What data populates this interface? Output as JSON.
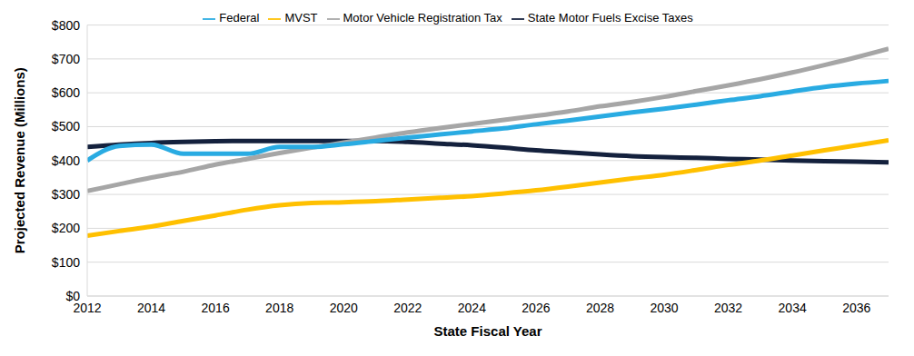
{
  "chart_data": {
    "type": "line",
    "x_label": "State Fiscal Year",
    "y_label": "Projected Revenue (Millions)",
    "x": [
      2012,
      2013,
      2014,
      2015,
      2016,
      2017,
      2018,
      2019,
      2020,
      2021,
      2022,
      2023,
      2024,
      2025,
      2026,
      2027,
      2028,
      2029,
      2030,
      2031,
      2032,
      2033,
      2034,
      2035,
      2036,
      2037
    ],
    "series": [
      {
        "name": "State Motor Fuels Excise Taxes",
        "color": "#14213d",
        "values": [
          440,
          447,
          452,
          455,
          457,
          458,
          458,
          458,
          458,
          458,
          455,
          450,
          445,
          438,
          430,
          424,
          418,
          413,
          410,
          408,
          405,
          403,
          400,
          398,
          397,
          395
        ]
      },
      {
        "name": "Motor Vehicle Registration Tax",
        "color": "#a6a6a6",
        "values": [
          310,
          330,
          350,
          367,
          388,
          405,
          422,
          438,
          453,
          468,
          483,
          496,
          508,
          520,
          532,
          545,
          560,
          573,
          588,
          605,
          622,
          640,
          660,
          682,
          705,
          730
        ]
      },
      {
        "name": "Federal",
        "color": "#29abe2",
        "values": [
          400,
          443,
          447,
          420,
          420,
          420,
          440,
          440,
          448,
          458,
          468,
          477,
          486,
          495,
          507,
          518,
          530,
          542,
          553,
          565,
          578,
          590,
          604,
          617,
          627,
          635
        ]
      },
      {
        "name": "MVST",
        "color": "#ffc000",
        "values": [
          178,
          192,
          205,
          222,
          238,
          255,
          268,
          275,
          277,
          280,
          285,
          290,
          295,
          303,
          312,
          323,
          335,
          347,
          358,
          372,
          387,
          400,
          415,
          430,
          445,
          460
        ]
      }
    ],
    "xlim": [
      2012,
      2037
    ],
    "xticks": [
      2012,
      2014,
      2016,
      2018,
      2020,
      2022,
      2024,
      2026,
      2028,
      2030,
      2032,
      2034,
      2036
    ],
    "ylim": [
      0,
      800
    ],
    "yticks": [
      {
        "value": 0,
        "label": "$0"
      },
      {
        "value": 100,
        "label": "$100"
      },
      {
        "value": 200,
        "label": "$200"
      },
      {
        "value": 300,
        "label": "$300"
      },
      {
        "value": 400,
        "label": "$400"
      },
      {
        "value": 500,
        "label": "$500"
      },
      {
        "value": 600,
        "label": "$600"
      },
      {
        "value": 700,
        "label": "$700"
      },
      {
        "value": 800,
        "label": "$800"
      }
    ],
    "grid": true,
    "legend": "top"
  }
}
